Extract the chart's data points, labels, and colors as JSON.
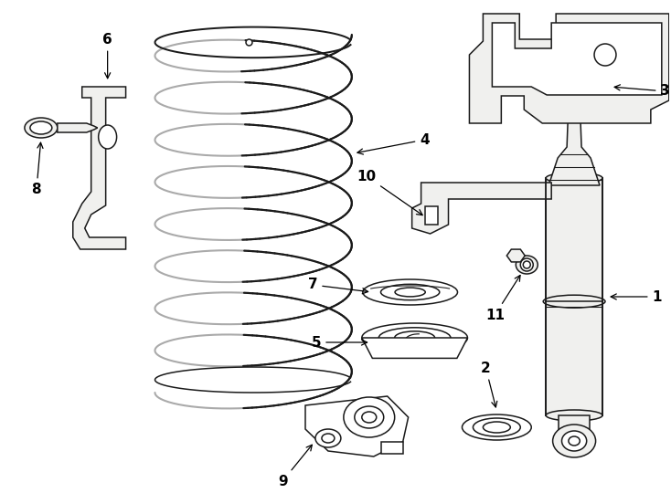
{
  "background_color": "#ffffff",
  "line_color": "#1a1a1a",
  "line_width": 1.1,
  "fill_white": "#ffffff",
  "fill_light": "#f0f0ee",
  "font_size": 11,
  "figw": 7.34,
  "figh": 5.4,
  "dpi": 100
}
